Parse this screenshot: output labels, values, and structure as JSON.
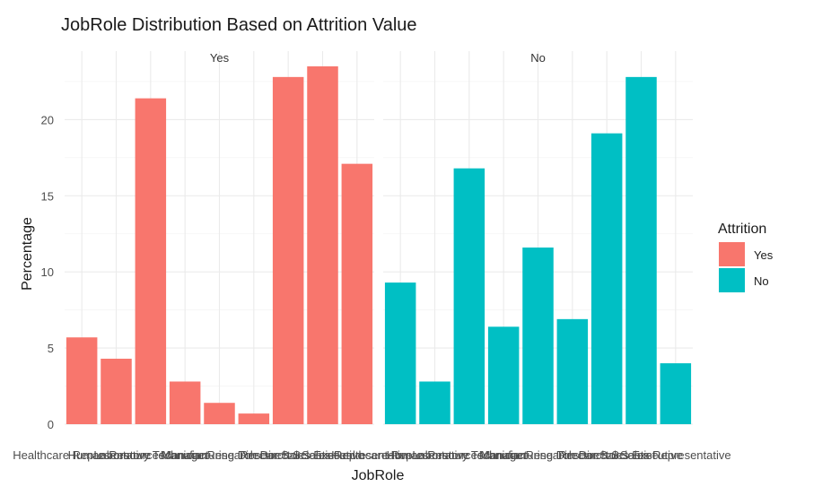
{
  "chart_data": {
    "type": "bar",
    "title": "JobRole Distribution Based on Attrition Value",
    "xlabel": "JobRole",
    "ylabel": "Percentage",
    "ylim": [
      0,
      24.5
    ],
    "yticks": [
      0,
      5,
      10,
      15,
      20
    ],
    "grid": true,
    "legend": {
      "title": "Attrition",
      "placement": "right",
      "entries": [
        {
          "label": "Yes",
          "color": "#F8766D"
        },
        {
          "label": "No",
          "color": "#00BFC4"
        }
      ]
    },
    "categories": [
      "Healthcare Representative",
      "Human Resources",
      "Laboratory Technician",
      "Manager",
      "Manufacturing Director",
      "Research Director",
      "Research Scientist",
      "Sales Executive",
      "Sales Representative"
    ],
    "panels": [
      {
        "name": "Yes",
        "color": "#F8766D",
        "values": [
          5.7,
          4.3,
          21.4,
          2.8,
          1.4,
          0.7,
          22.8,
          23.5,
          17.1
        ]
      },
      {
        "name": "No",
        "color": "#00BFC4",
        "values": [
          9.3,
          2.8,
          16.8,
          6.4,
          11.6,
          6.9,
          19.1,
          22.8,
          4.0
        ]
      }
    ]
  }
}
